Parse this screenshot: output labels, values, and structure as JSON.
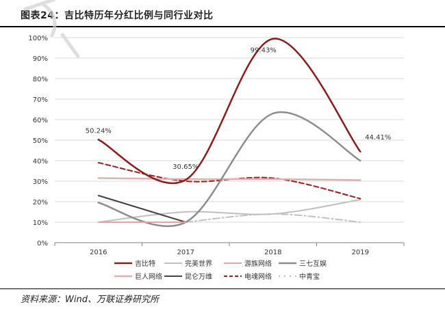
{
  "header": {
    "title": "图表24：吉比特历年分红比例与同行业对比"
  },
  "footer": {
    "source": "资料来源：Wind、万联证券研究所"
  },
  "chart_data": {
    "type": "line",
    "categories": [
      "2016",
      "2017",
      "2018",
      "2019"
    ],
    "ylim": [
      0,
      100
    ],
    "yticks": [
      "0%",
      "10%",
      "20%",
      "30%",
      "40%",
      "50%",
      "60%",
      "70%",
      "80%",
      "90%",
      "100%"
    ],
    "grid": true,
    "legend_position": "bottom",
    "series": [
      {
        "name": "吉比特",
        "values": [
          50.24,
          30.65,
          99.43,
          44.41
        ],
        "color": "#8b1a1a",
        "dash": "solid",
        "width": 2.5
      },
      {
        "name": "完美世界",
        "values": [
          10,
          15,
          14,
          21
        ],
        "color": "#bfbfbf",
        "dash": "solid",
        "width": 2
      },
      {
        "name": "游族网络",
        "values": [
          10,
          10,
          null,
          null
        ],
        "color": "#e8a0a0",
        "dash": "solid",
        "width": 2
      },
      {
        "name": "三七互娱",
        "values": [
          19.5,
          10,
          63,
          40
        ],
        "color": "#8c8c8c",
        "dash": "solid",
        "width": 2.5
      },
      {
        "name": "巨人网络",
        "values": [
          31.5,
          31,
          31,
          30.5
        ],
        "color": "#e0b0b0",
        "dash": "solid",
        "width": 2.5
      },
      {
        "name": "昆仑万维",
        "values": [
          23,
          10,
          null,
          null
        ],
        "color": "#404040",
        "dash": "solid",
        "width": 2
      },
      {
        "name": "电魂网络",
        "values": [
          39,
          30,
          31.5,
          21.5
        ],
        "color": "#9b1b1b",
        "dash": "dash",
        "width": 2
      },
      {
        "name": "中青宝",
        "values": [
          null,
          10,
          14,
          10
        ],
        "color": "#c0c0c0",
        "dash": "dashdot",
        "width": 2
      }
    ],
    "annotations": [
      {
        "text": "50.24%",
        "series": 0,
        "index": 0
      },
      {
        "text": "30.65%",
        "series": 0,
        "index": 1
      },
      {
        "text": "99.43%",
        "series": 0,
        "index": 2
      },
      {
        "text": "44.41%",
        "series": 0,
        "index": 3
      }
    ]
  }
}
